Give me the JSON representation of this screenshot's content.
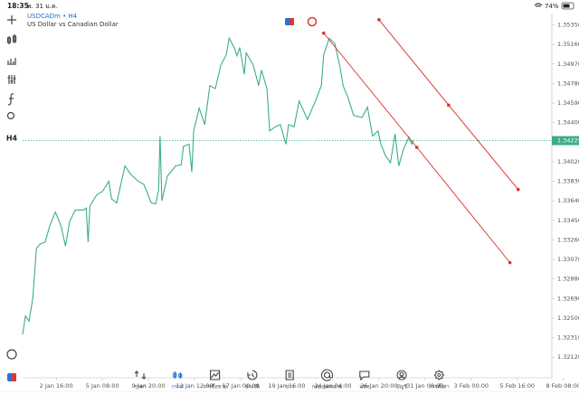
{
  "status_bar": {
    "time": "18:35",
    "date": "พ. 31 ม.ค.",
    "battery": "74%"
  },
  "header": {
    "symbol": "USDCADm • H4",
    "description": "US Dollar vs Canadian Dollar"
  },
  "toolbar": {
    "timeframe": "H4"
  },
  "chart_data": {
    "type": "line",
    "series": [
      {
        "name": "USDCADm",
        "color": "#3aae87",
        "x": [
          -0.73,
          -0.67,
          -0.59,
          -0.51,
          -0.43,
          -0.35,
          -0.24,
          -0.14,
          -0.02,
          0.1,
          0.2,
          0.29,
          0.41,
          0.59,
          0.65,
          0.69,
          0.73,
          0.88,
          1.0,
          1.14,
          1.2,
          1.31,
          1.49,
          1.61,
          1.78,
          1.9,
          2.06,
          2.16,
          2.22,
          2.25,
          2.29,
          2.41,
          2.59,
          2.71,
          2.76,
          2.88,
          2.94,
          2.98,
          3.1,
          3.22,
          3.33,
          3.45,
          3.57,
          3.69,
          3.75,
          3.86,
          3.92,
          3.98,
          4.08,
          4.12,
          4.27,
          4.39,
          4.45,
          4.57,
          4.63,
          4.75,
          4.86,
          4.98,
          5.04,
          5.16,
          5.27,
          5.45,
          5.63,
          5.75,
          5.8,
          5.92,
          6.04,
          6.16,
          6.22,
          6.33,
          6.45,
          6.63,
          6.75,
          6.86,
          6.98,
          7.04,
          7.14,
          7.25,
          7.35,
          7.43,
          7.53,
          7.65,
          7.71,
          7.76
        ],
        "values": [
          1.3234,
          1.3252,
          1.3247,
          1.3269,
          1.3318,
          1.3322,
          1.3324,
          1.334,
          1.3353,
          1.334,
          1.332,
          1.3344,
          1.3355,
          1.3355,
          1.3357,
          1.3324,
          1.3359,
          1.337,
          1.3373,
          1.3383,
          1.3366,
          1.3362,
          1.3398,
          1.339,
          1.3383,
          1.338,
          1.3362,
          1.3361,
          1.3375,
          1.3427,
          1.3364,
          1.3388,
          1.3398,
          1.3399,
          1.3417,
          1.3419,
          1.3392,
          1.3432,
          1.3454,
          1.3438,
          1.3476,
          1.3473,
          1.3496,
          1.3506,
          1.3522,
          1.3513,
          1.3505,
          1.3513,
          1.3487,
          1.3508,
          1.3496,
          1.3476,
          1.3491,
          1.3473,
          1.3432,
          1.3436,
          1.3438,
          1.3419,
          1.3438,
          1.3436,
          1.3461,
          1.3443,
          1.3462,
          1.3476,
          1.3506,
          1.3522,
          1.3517,
          1.3493,
          1.3476,
          1.3464,
          1.3447,
          1.3445,
          1.3455,
          1.3427,
          1.3432,
          1.3419,
          1.3408,
          1.3401,
          1.3429,
          1.3398,
          1.3414,
          1.3426,
          1.3419,
          1.3423
        ]
      }
    ],
    "trendlines": [
      {
        "color": "#d9302c",
        "x": [
          5.8,
          7.82,
          9.84
        ],
        "y": [
          1.3527,
          1.3416,
          1.3304
        ]
      },
      {
        "color": "#d9302c",
        "x": [
          7.0,
          8.51,
          10.02
        ],
        "y": [
          1.354,
          1.3457,
          1.3375
        ]
      }
    ],
    "current_price": {
      "value": 1.34225,
      "label": "1.34225"
    },
    "xlim": [
      -0.73,
      10.75
    ],
    "ylim": [
      1.3192,
      1.3546
    ],
    "xticks": [
      {
        "value": 0,
        "label": "2 Jan 16:00"
      },
      {
        "value": 1,
        "label": "5 Jan 08:00"
      },
      {
        "value": 2,
        "label": "9 Jan 20:00"
      },
      {
        "value": 3,
        "label": "12 Jan 12:00"
      },
      {
        "value": 4,
        "label": "17 Jan 00:00"
      },
      {
        "value": 5,
        "label": "19 Jan 16:00"
      },
      {
        "value": 6,
        "label": "24 Jan 04:00"
      },
      {
        "value": 7,
        "label": "26 Jan 20:00"
      },
      {
        "value": 8,
        "label": "31 Jan 08:00"
      },
      {
        "value": 9,
        "label": "3 Feb 00:00"
      },
      {
        "value": 10,
        "label": "5 Feb 16:00"
      },
      {
        "value": 11,
        "label": "8 Feb 08:00"
      }
    ],
    "yticks": [
      {
        "value": 1.3535,
        "label": "1.35350"
      },
      {
        "value": 1.3516,
        "label": "1.35160"
      },
      {
        "value": 1.3497,
        "label": "1.34970"
      },
      {
        "value": 1.3478,
        "label": "1.34780"
      },
      {
        "value": 1.3459,
        "label": "1.34590"
      },
      {
        "value": 1.344,
        "label": "1.34400"
      },
      {
        "value": 1.3402,
        "label": "1.34020"
      },
      {
        "value": 1.3383,
        "label": "1.33830"
      },
      {
        "value": 1.3364,
        "label": "1.33640"
      },
      {
        "value": 1.3345,
        "label": "1.33450"
      },
      {
        "value": 1.3326,
        "label": "1.33260"
      },
      {
        "value": 1.3307,
        "label": "1.33070"
      },
      {
        "value": 1.3288,
        "label": "1.32880"
      },
      {
        "value": 1.3269,
        "label": "1.32690"
      },
      {
        "value": 1.325,
        "label": "1.32500"
      },
      {
        "value": 1.3231,
        "label": "1.32310"
      },
      {
        "value": 1.3212,
        "label": "1.32120"
      }
    ]
  },
  "nav": [
    "ราคา",
    "กราฟ",
    "การซื้อขาย",
    "ประวัติ",
    "ข่าว",
    "กล่องจดหมาย",
    "แชท",
    "บัญชี",
    "การตั้งค่า"
  ],
  "nav_active": 1
}
